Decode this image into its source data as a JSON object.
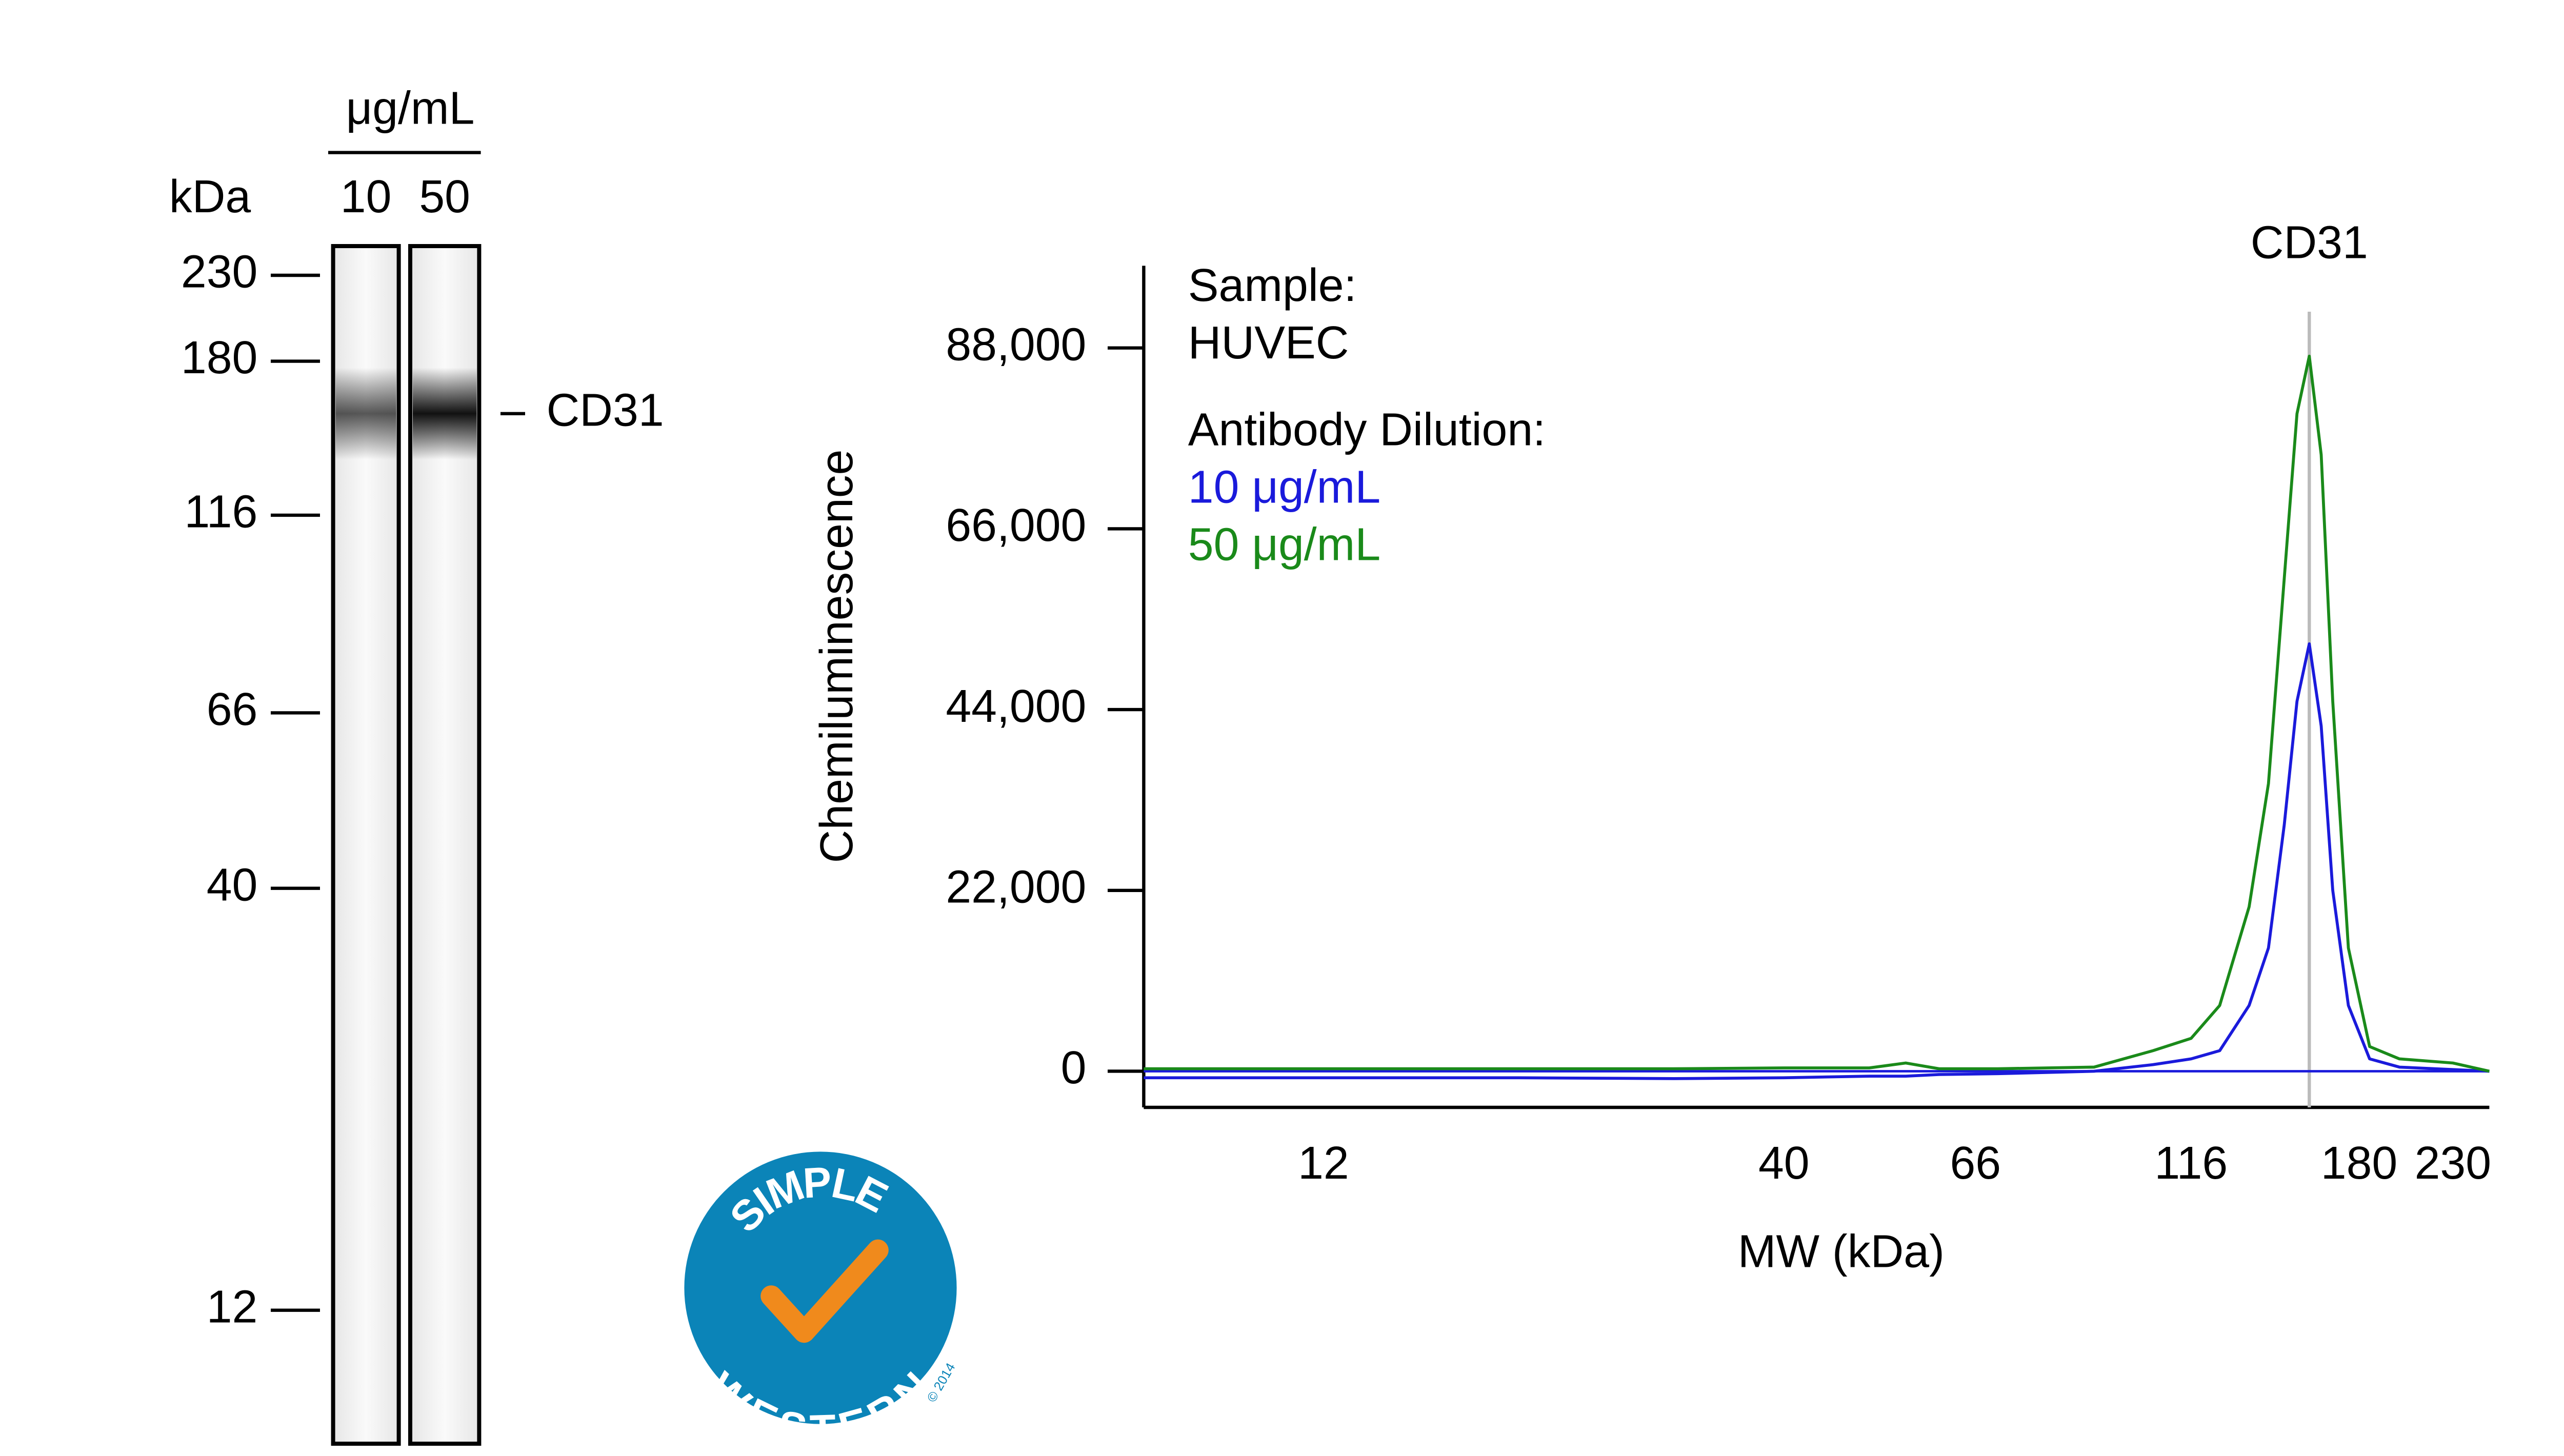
{
  "chart_data": [
    {
      "type": "gel",
      "unit_label": "μg/mL",
      "axis_label": "kDa",
      "categories": [
        "10",
        "50"
      ],
      "yscale": "log",
      "ylim": [
        8.2,
        250
      ],
      "yticks": [
        230,
        180,
        116,
        66,
        40,
        12
      ],
      "band": {
        "label": "CD31",
        "value": 155
      }
    },
    {
      "type": "line",
      "xscale": "log",
      "xlabel": "MW (kDa)",
      "ylabel": "Chemiluminescence",
      "xlim": [
        7.5,
        253
      ],
      "xticks": [
        12,
        40,
        66,
        116,
        180,
        230
      ],
      "ylim": [
        -4400,
        98000
      ],
      "yticks": [
        0,
        {
          "value": 22000,
          "label": "22,000"
        },
        {
          "value": 44000,
          "label": "44,000"
        },
        {
          "value": 66000,
          "label": "66,000"
        },
        {
          "value": 88000,
          "label": "88,000"
        }
      ],
      "legend_title": [
        "Sample:",
        "HUVEC",
        "Antibody Dilution:"
      ],
      "annotation": {
        "text": "CD31",
        "x": 158
      },
      "x": [
        7.5,
        12,
        20,
        30,
        40,
        50,
        55,
        60,
        70,
        90,
        105,
        116,
        125,
        135,
        142,
        148,
        153,
        158,
        163,
        168,
        175,
        185,
        200,
        230,
        253
      ],
      "series": [
        {
          "name": "10 μg/mL",
          "color": "#1a1adb",
          "values": [
            -800,
            -800,
            -800,
            -900,
            -800,
            -600,
            -600,
            -400,
            -300,
            0,
            800,
            1500,
            2500,
            8000,
            15000,
            30000,
            45000,
            52000,
            42000,
            22000,
            8000,
            1500,
            500,
            200,
            0
          ]
        },
        {
          "name": "50 μg/mL",
          "color": "#1a8a1a",
          "values": [
            300,
            300,
            300,
            300,
            400,
            400,
            1000,
            300,
            300,
            500,
            2500,
            4000,
            8000,
            20000,
            35000,
            60000,
            80000,
            87000,
            75000,
            45000,
            15000,
            3000,
            1500,
            1000,
            0
          ]
        }
      ]
    }
  ],
  "logo": {
    "top": "SIMPLE",
    "bottom": "WESTERN",
    "copyright": "© 2014"
  }
}
